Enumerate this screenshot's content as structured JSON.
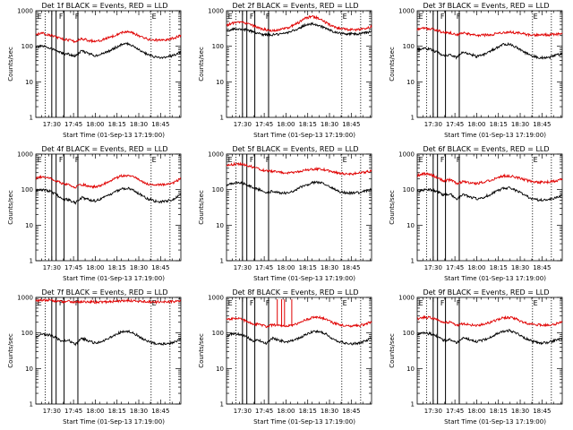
{
  "chart_data": [
    {
      "type": "line",
      "title": "Det 1f BLACK = Events, RED = LLD",
      "xlabel": "Start Time (01-Sep-13 17:19:00)",
      "ylabel": "Counts/sec",
      "x_ticks": [
        "17:30",
        "17:45",
        "18:00",
        "18:15",
        "18:30",
        "18:45"
      ],
      "y_ticks": [
        "1",
        "10",
        "100",
        "1000"
      ],
      "ylim": [
        1,
        1000
      ],
      "x_range_minutes": [
        0,
        100
      ],
      "markers": [
        {
          "label": "E",
          "t": 1
        },
        {
          "label": "F",
          "t": 16
        },
        {
          "label": "F",
          "t": 27
        },
        {
          "label": "E",
          "t": 80
        }
      ],
      "solid_lines_t": [
        11,
        14,
        19.5,
        29
      ],
      "dotted_lines_t": [
        6.5,
        79.5,
        92.5
      ],
      "series": [
        {
          "name": "Events",
          "color": "#000000",
          "values": [
            95,
            100,
            92,
            78,
            62,
            60,
            52,
            75,
            62,
            55,
            60,
            72,
            90,
            112,
            118,
            98,
            73,
            58,
            50,
            48,
            50,
            57,
            68
          ]
        },
        {
          "name": "LLD",
          "color": "#e00000",
          "values": [
            220,
            230,
            210,
            185,
            160,
            150,
            135,
            165,
            145,
            140,
            150,
            175,
            205,
            245,
            255,
            225,
            185,
            155,
            150,
            150,
            155,
            170,
            205
          ]
        }
      ]
    },
    {
      "type": "line",
      "title": "Det 2f BLACK = Events, RED = LLD",
      "xlabel": "Start Time (01-Sep-13 17:19:00)",
      "ylabel": "Counts/sec",
      "x_ticks": [
        "17:30",
        "17:45",
        "18:00",
        "18:15",
        "18:30",
        "18:45"
      ],
      "y_ticks": [
        "1",
        "10",
        "100",
        "1000"
      ],
      "ylim": [
        1,
        1000
      ],
      "x_range_minutes": [
        0,
        100
      ],
      "markers": [
        {
          "label": "E",
          "t": 1
        },
        {
          "label": "F",
          "t": 16
        },
        {
          "label": "F",
          "t": 27
        },
        {
          "label": "E",
          "t": 80
        }
      ],
      "solid_lines_t": [
        11,
        14,
        19.5,
        29
      ],
      "dotted_lines_t": [
        6.5,
        79.5,
        92.5
      ],
      "series": [
        {
          "name": "Events",
          "color": "#000000",
          "values": [
            260,
            300,
            310,
            290,
            255,
            225,
            210,
            210,
            215,
            235,
            270,
            325,
            400,
            430,
            385,
            320,
            265,
            235,
            225,
            225,
            225,
            235,
            260
          ]
        },
        {
          "name": "LLD",
          "color": "#e00000",
          "values": [
            390,
            450,
            480,
            450,
            380,
            320,
            290,
            280,
            290,
            320,
            380,
            470,
            620,
            690,
            610,
            470,
            370,
            320,
            300,
            290,
            290,
            310,
            360
          ]
        }
      ]
    },
    {
      "type": "line",
      "title": "Det 3f BLACK = Events, RED = LLD",
      "xlabel": "Start Time (01-Sep-13 17:19:00)",
      "ylabel": "Counts/sec",
      "x_ticks": [
        "17:30",
        "17:45",
        "18:00",
        "18:15",
        "18:30",
        "18:45"
      ],
      "y_ticks": [
        "1",
        "10",
        "100",
        "1000"
      ],
      "ylim": [
        1,
        1000
      ],
      "x_range_minutes": [
        0,
        100
      ],
      "markers": [
        {
          "label": "E",
          "t": 1
        },
        {
          "label": "F",
          "t": 16
        },
        {
          "label": "F",
          "t": 27
        },
        {
          "label": "E",
          "t": 80
        }
      ],
      "solid_lines_t": [
        11,
        14,
        19.5,
        29
      ],
      "dotted_lines_t": [
        6.5,
        79.5,
        92.5
      ],
      "series": [
        {
          "name": "Events",
          "color": "#000000",
          "values": [
            80,
            88,
            82,
            68,
            55,
            57,
            48,
            70,
            60,
            52,
            58,
            70,
            90,
            112,
            115,
            95,
            72,
            58,
            50,
            48,
            48,
            55,
            62
          ]
        },
        {
          "name": "LLD",
          "color": "#e00000",
          "values": [
            300,
            320,
            310,
            280,
            245,
            240,
            210,
            240,
            220,
            205,
            205,
            210,
            225,
            240,
            250,
            240,
            225,
            210,
            205,
            210,
            210,
            215,
            230
          ]
        }
      ]
    },
    {
      "type": "line",
      "title": "Det 4f BLACK = Events, RED = LLD",
      "xlabel": "Start Time (01-Sep-13 17:19:00)",
      "ylabel": "Counts/sec",
      "x_ticks": [
        "17:30",
        "17:45",
        "18:00",
        "18:15",
        "18:30",
        "18:45"
      ],
      "y_ticks": [
        "1",
        "10",
        "100",
        "1000"
      ],
      "ylim": [
        1,
        1000
      ],
      "x_range_minutes": [
        0,
        100
      ],
      "markers": [
        {
          "label": "E",
          "t": 1
        },
        {
          "label": "F",
          "t": 16
        },
        {
          "label": "F",
          "t": 27
        },
        {
          "label": "E",
          "t": 80
        }
      ],
      "solid_lines_t": [
        11,
        14,
        19.5,
        29
      ],
      "dotted_lines_t": [
        6.5,
        79.5,
        92.5
      ],
      "series": [
        {
          "name": "Events",
          "color": "#000000",
          "values": [
            92,
            100,
            92,
            75,
            55,
            52,
            42,
            60,
            52,
            48,
            55,
            68,
            85,
            105,
            110,
            92,
            70,
            55,
            48,
            45,
            48,
            55,
            72
          ]
        },
        {
          "name": "LLD",
          "color": "#e00000",
          "values": [
            210,
            230,
            215,
            180,
            150,
            140,
            115,
            140,
            125,
            120,
            135,
            165,
            205,
            245,
            255,
            220,
            175,
            145,
            135,
            135,
            140,
            160,
            210
          ]
        }
      ]
    },
    {
      "type": "line",
      "title": "Det 5f BLACK = Events, RED = LLD",
      "xlabel": "Start Time (01-Sep-13 17:19:00)",
      "ylabel": "Counts/sec",
      "x_ticks": [
        "17:30",
        "17:45",
        "18:00",
        "18:15",
        "18:30",
        "18:45"
      ],
      "y_ticks": [
        "1",
        "10",
        "100",
        "1000"
      ],
      "ylim": [
        1,
        1000
      ],
      "x_range_minutes": [
        0,
        100
      ],
      "markers": [
        {
          "label": "E",
          "t": 1
        },
        {
          "label": "F",
          "t": 16
        },
        {
          "label": "F",
          "t": 27
        },
        {
          "label": "E",
          "t": 80
        }
      ],
      "solid_lines_t": [
        11,
        14,
        19.5,
        29
      ],
      "dotted_lines_t": [
        6.5,
        79.5,
        92.5
      ],
      "series": [
        {
          "name": "Events",
          "color": "#000000",
          "values": [
            135,
            155,
            160,
            140,
            115,
            100,
            80,
            90,
            82,
            80,
            90,
            110,
            135,
            155,
            160,
            140,
            110,
            90,
            82,
            80,
            82,
            90,
            100
          ]
        },
        {
          "name": "LLD",
          "color": "#e00000",
          "values": [
            480,
            520,
            530,
            490,
            430,
            380,
            330,
            330,
            310,
            290,
            300,
            320,
            350,
            370,
            380,
            360,
            320,
            290,
            280,
            280,
            290,
            310,
            340
          ]
        }
      ]
    },
    {
      "type": "line",
      "title": "Det 6f BLACK = Events, RED = LLD",
      "xlabel": "Start Time (01-Sep-13 17:19:00)",
      "ylabel": "Counts/sec",
      "x_ticks": [
        "17:30",
        "17:45",
        "18:00",
        "18:15",
        "18:30",
        "18:45"
      ],
      "y_ticks": [
        "1",
        "10",
        "100",
        "1000"
      ],
      "ylim": [
        1,
        1000
      ],
      "x_range_minutes": [
        0,
        100
      ],
      "markers": [
        {
          "label": "E",
          "t": 1
        },
        {
          "label": "F",
          "t": 16
        },
        {
          "label": "F",
          "t": 27
        },
        {
          "label": "E",
          "t": 80
        }
      ],
      "solid_lines_t": [
        11,
        14,
        19.5,
        29
      ],
      "dotted_lines_t": [
        6.5,
        79.5,
        92.5
      ],
      "series": [
        {
          "name": "Events",
          "color": "#000000",
          "values": [
            90,
            98,
            100,
            88,
            70,
            75,
            55,
            72,
            62,
            55,
            60,
            72,
            90,
            108,
            112,
            95,
            75,
            60,
            52,
            50,
            52,
            58,
            70
          ]
        },
        {
          "name": "LLD",
          "color": "#e00000",
          "values": [
            250,
            280,
            270,
            220,
            175,
            190,
            150,
            170,
            155,
            150,
            160,
            180,
            210,
            240,
            245,
            225,
            195,
            175,
            165,
            160,
            165,
            175,
            195
          ]
        }
      ]
    },
    {
      "type": "line",
      "title": "Det 7f BLACK = Events, RED = LLD",
      "xlabel": "Start Time (01-Sep-13 17:19:00)",
      "ylabel": "Counts/sec",
      "x_ticks": [
        "17:30",
        "17:45",
        "18:00",
        "18:15",
        "18:30",
        "18:45"
      ],
      "y_ticks": [
        "1",
        "10",
        "100",
        "1000"
      ],
      "ylim": [
        1,
        1000
      ],
      "x_range_minutes": [
        0,
        100
      ],
      "markers": [
        {
          "label": "E",
          "t": 1
        },
        {
          "label": "F",
          "t": 16
        },
        {
          "label": "F",
          "t": 27
        },
        {
          "label": "E",
          "t": 80
        }
      ],
      "solid_lines_t": [
        11,
        14,
        19.5,
        29
      ],
      "dotted_lines_t": [
        6.5,
        79.5,
        92.5
      ],
      "series": [
        {
          "name": "Events",
          "color": "#000000",
          "values": [
            80,
            90,
            88,
            75,
            58,
            62,
            48,
            70,
            60,
            52,
            58,
            70,
            88,
            108,
            112,
            95,
            72,
            58,
            50,
            48,
            50,
            55,
            68
          ]
        },
        {
          "name": "LLD",
          "color": "#e00000",
          "values": [
            820,
            840,
            830,
            800,
            760,
            770,
            740,
            760,
            750,
            740,
            750,
            760,
            780,
            800,
            810,
            790,
            770,
            750,
            740,
            740,
            750,
            760,
            780
          ]
        }
      ]
    },
    {
      "type": "line",
      "title": "Det 8f BLACK = Events, RED = LLD",
      "xlabel": "Start Time (01-Sep-13 17:19:00)",
      "ylabel": "Counts/sec",
      "x_ticks": [
        "17:30",
        "17:45",
        "18:00",
        "18:15",
        "18:30",
        "18:45"
      ],
      "y_ticks": [
        "1",
        "10",
        "100",
        "1000"
      ],
      "ylim": [
        1,
        1000
      ],
      "x_range_minutes": [
        0,
        100
      ],
      "markers": [
        {
          "label": "E",
          "t": 1
        },
        {
          "label": "F",
          "t": 16
        },
        {
          "label": "F",
          "t": 27
        },
        {
          "label": "E",
          "t": 80
        }
      ],
      "solid_lines_t": [
        11,
        14,
        19.5,
        29
      ],
      "dotted_lines_t": [
        6.5,
        79.5,
        92.5
      ],
      "spikes_t": [
        35,
        38,
        40,
        45
      ],
      "series": [
        {
          "name": "Events",
          "color": "#000000",
          "values": [
            85,
            95,
            92,
            78,
            60,
            62,
            50,
            72,
            62,
            55,
            60,
            72,
            88,
            108,
            112,
            95,
            72,
            58,
            52,
            50,
            52,
            58,
            72
          ]
        },
        {
          "name": "LLD",
          "color": "#e00000",
          "values": [
            230,
            260,
            250,
            215,
            175,
            180,
            150,
            170,
            160,
            155,
            165,
            190,
            230,
            270,
            280,
            245,
            200,
            170,
            160,
            158,
            160,
            175,
            205
          ]
        }
      ]
    },
    {
      "type": "line",
      "title": "Det 9f BLACK = Events, RED = LLD",
      "xlabel": "Start Time (01-Sep-13 17:19:00)",
      "ylabel": "Counts/sec",
      "x_ticks": [
        "17:30",
        "17:45",
        "18:00",
        "18:15",
        "18:30",
        "18:45"
      ],
      "y_ticks": [
        "1",
        "10",
        "100",
        "1000"
      ],
      "ylim": [
        1,
        1000
      ],
      "x_range_minutes": [
        0,
        100
      ],
      "markers": [
        {
          "label": "E",
          "t": 1
        },
        {
          "label": "F",
          "t": 16
        },
        {
          "label": "F",
          "t": 27
        },
        {
          "label": "E",
          "t": 80
        }
      ],
      "solid_lines_t": [
        11,
        14,
        19.5,
        29
      ],
      "dotted_lines_t": [
        6.5,
        79.5,
        92.5
      ],
      "series": [
        {
          "name": "Events",
          "color": "#000000",
          "values": [
            92,
            100,
            95,
            80,
            62,
            65,
            52,
            75,
            65,
            58,
            62,
            75,
            92,
            112,
            118,
            100,
            78,
            62,
            55,
            52,
            55,
            62,
            72
          ]
        },
        {
          "name": "LLD",
          "color": "#e00000",
          "values": [
            250,
            275,
            270,
            235,
            195,
            200,
            165,
            185,
            170,
            165,
            175,
            195,
            230,
            265,
            275,
            245,
            205,
            180,
            170,
            168,
            170,
            180,
            205
          ]
        }
      ]
    }
  ]
}
